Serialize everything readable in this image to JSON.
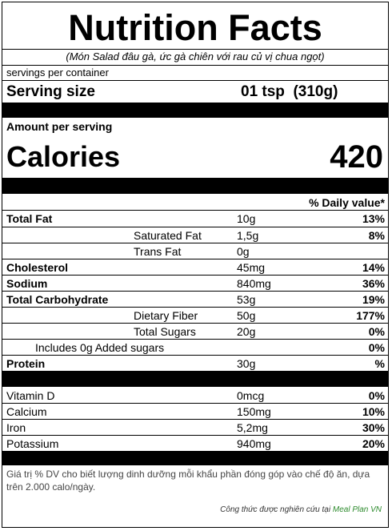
{
  "title": "Nutrition Facts",
  "subtitle": "(Món  Salad đâu gà, ức gà chiên với rau củ vị chua ngọt)",
  "servings_per_container": "servings per container",
  "serving_size": {
    "label": "Serving size",
    "value": "01 tsp  (310g)"
  },
  "amount_per_serving": "Amount per serving",
  "calories": {
    "label": "Calories",
    "value": "420"
  },
  "daily_value_header": "% Daily value*",
  "nutrients": [
    {
      "name": "Total Fat",
      "amount": "10g",
      "dv": "13%"
    },
    {
      "name": "Saturated Fat",
      "amount": "1,5g",
      "dv": "8%"
    },
    {
      "name": "Trans Fat",
      "amount": "0g",
      "dv": ""
    },
    {
      "name": "Cholesterol",
      "amount": "45mg",
      "dv": "14%"
    },
    {
      "name": "Sodium",
      "amount": "840mg",
      "dv": "36%"
    },
    {
      "name": "Total Carbohydrate",
      "amount": "53g",
      "dv": "19%"
    },
    {
      "name": "Dietary Fiber",
      "amount": "50g",
      "dv": "177%"
    },
    {
      "name": "Total Sugars",
      "amount": "20g",
      "dv": "0%"
    },
    {
      "name": "Includes 0g Added sugars",
      "amount": "",
      "dv": "0%"
    },
    {
      "name": "Protein",
      "amount": "30g",
      "dv": "%"
    }
  ],
  "vitamins": [
    {
      "name": "Vitamin D",
      "amount": "0mcg",
      "dv": "0%"
    },
    {
      "name": "Calcium",
      "amount": "150mg",
      "dv": "10%"
    },
    {
      "name": "Iron",
      "amount": "5,2mg",
      "dv": "30%"
    },
    {
      "name": "Potassium",
      "amount": "940mg",
      "dv": "20%"
    }
  ],
  "footnote": "Giá trị % DV cho biết lượng dinh dưỡng mỗi khẩu phần đóng góp vào chế độ ăn, dựa trên 2.000 calo/ngày.",
  "credit": {
    "text": "Công thức được nghiên cứu tại",
    "brand": "Meal Plan VN"
  }
}
